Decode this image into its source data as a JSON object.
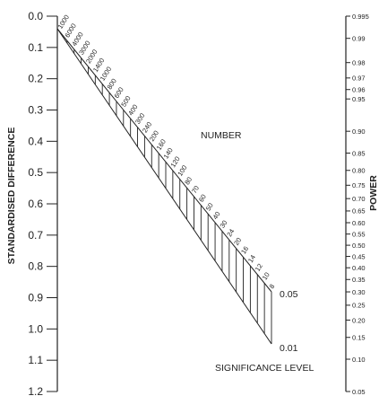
{
  "nomogram": {
    "left_axis": {
      "title": "STANDARDISED DIFFERENCE",
      "ticks": [
        "0.0",
        "0.1",
        "0.2",
        "0.3",
        "0.4",
        "0.5",
        "0.6",
        "0.7",
        "0.8",
        "0.9",
        "1.0",
        "1.1",
        "1.2"
      ]
    },
    "right_axis": {
      "title": "POWER",
      "ticks": [
        "0.995",
        "0.99",
        "0.98",
        "0.97",
        "0.96",
        "0.95",
        "0.90",
        "0.85",
        "0.80",
        "0.75",
        "0.70",
        "0.65",
        "0.60",
        "0.55",
        "0.50",
        "0.45",
        "0.40",
        "0.35",
        "0.30",
        "0.25",
        "0.20",
        "0.15",
        "0.10",
        "0.05"
      ]
    },
    "sample_size": {
      "title": "NUMBER",
      "values": [
        "1000",
        "6000",
        "4000",
        "3000",
        "2000",
        "1400",
        "1000",
        "800",
        "600",
        "500",
        "400",
        "300",
        "240",
        "200",
        "160",
        "140",
        "120",
        "100",
        "80",
        "70",
        "60",
        "50",
        "40",
        "30",
        "24",
        "20",
        "16",
        "14",
        "12",
        "10",
        "8"
      ]
    },
    "significance": {
      "title": "SIGNIFICANCE LEVEL",
      "levels": [
        "0.05",
        "0.01"
      ]
    }
  }
}
